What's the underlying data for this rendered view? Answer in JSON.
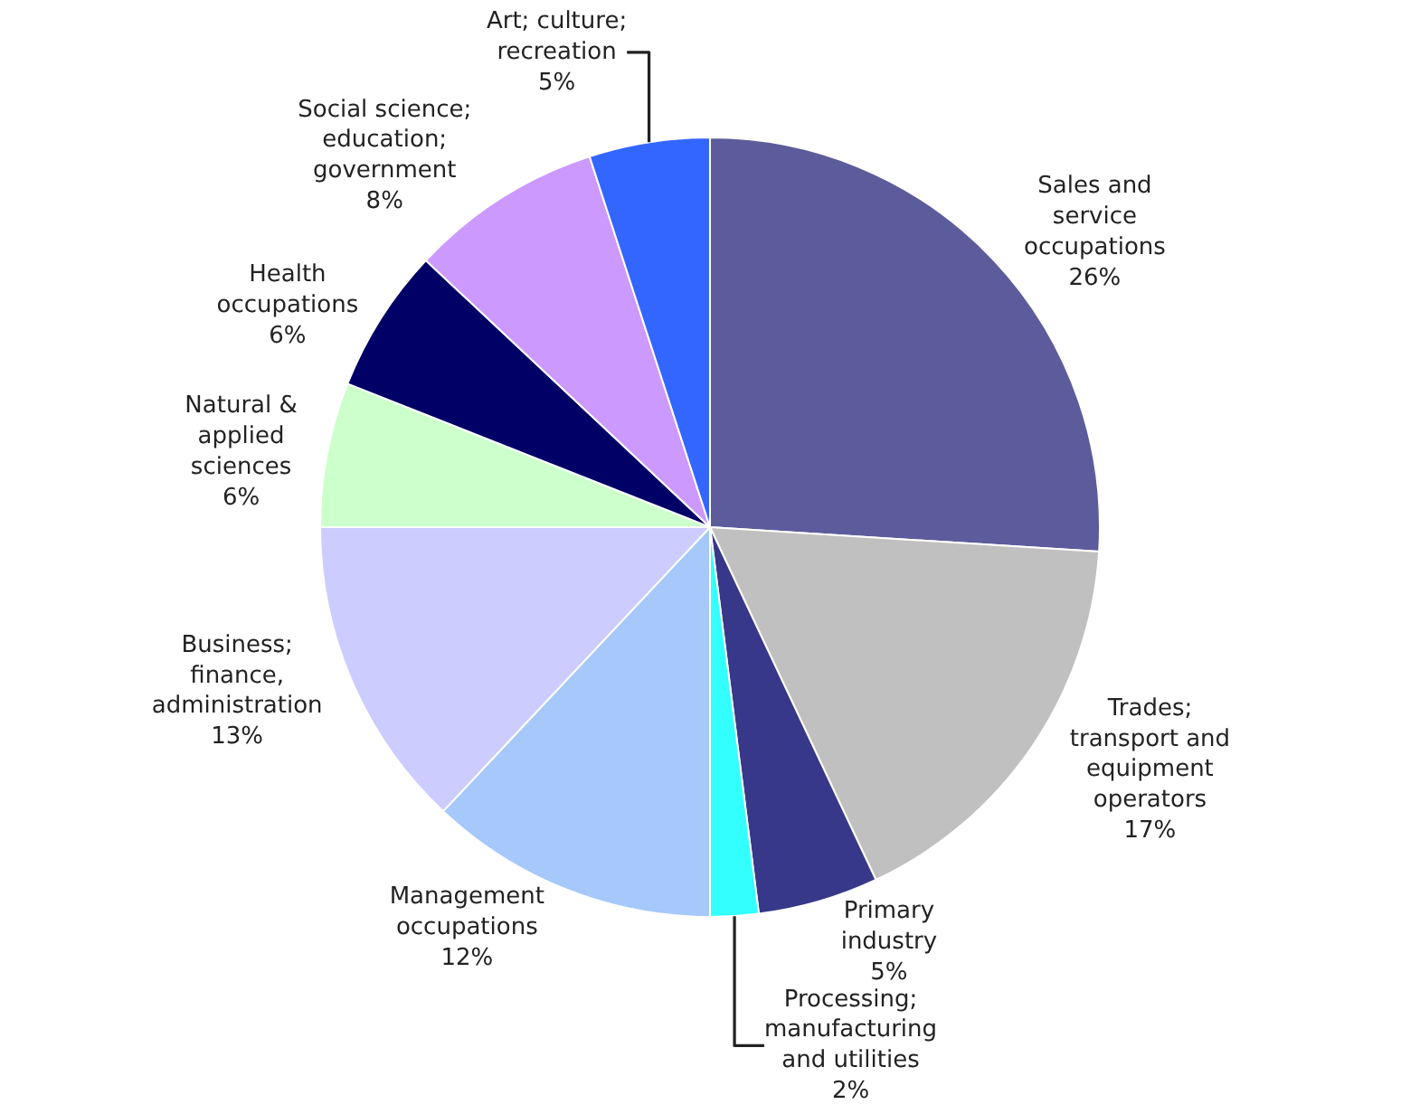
{
  "chart_data": {
    "type": "pie",
    "categories": [
      "Sales and\nservice\noccupations",
      "Trades;\ntransport and\nequipment\noperators",
      "Primary\nindustry",
      "Processing;\nmanufacturing\nand utilities",
      "Management\noccupations",
      "Business;\nfinance,\nadministration",
      "Natural &\napplied\nsciences",
      "Health\noccupations",
      "Social science;\neducation;\ngovernment",
      "Art; culture;\nrecreation"
    ],
    "values": [
      26,
      17,
      5,
      2,
      12,
      13,
      6,
      6,
      8,
      5
    ],
    "value_labels": [
      "26%",
      "17%",
      "5%",
      "2%",
      "12%",
      "13%",
      "6%",
      "6%",
      "8%",
      "5%"
    ],
    "colors": [
      "#5c5c9c",
      "#c0c0c0",
      "#38388a",
      "#33ffff",
      "#a6c8fa",
      "#ccccff",
      "#ccffcc",
      "#000066",
      "#cc99ff",
      "#3366ff"
    ],
    "legend": false
  }
}
